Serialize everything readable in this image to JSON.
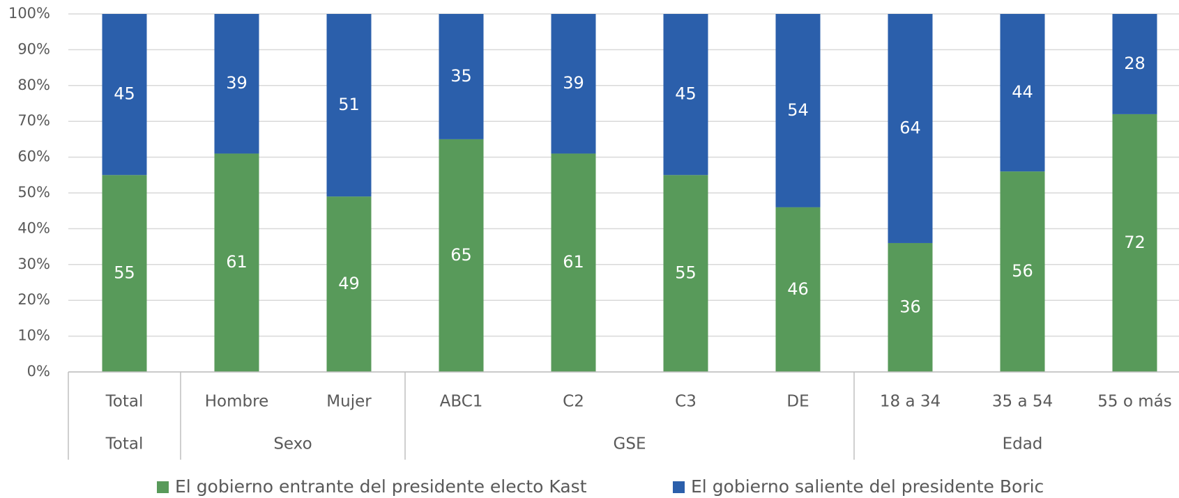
{
  "chart_data": {
    "type": "stacked_bar",
    "groups": [
      {
        "name": "Total",
        "categories": [
          "Total"
        ]
      },
      {
        "name": "Sexo",
        "categories": [
          "Hombre",
          "Mujer"
        ]
      },
      {
        "name": "GSE",
        "categories": [
          "ABC1",
          "C2",
          "C3",
          "DE"
        ]
      },
      {
        "name": "Edad",
        "categories": [
          "18 a 34",
          "35 a 54",
          "55 o más"
        ]
      }
    ],
    "series": [
      {
        "name": "El gobierno entrante del presidente electo Kast",
        "color": "#589a5a",
        "values": [
          55,
          61,
          49,
          65,
          61,
          55,
          46,
          36,
          56,
          72
        ]
      },
      {
        "name": "El gobierno saliente del presidente Boric",
        "color": "#2b5fab",
        "values": [
          45,
          39,
          51,
          35,
          39,
          45,
          54,
          64,
          44,
          28
        ]
      }
    ],
    "ylim": [
      0,
      100
    ],
    "yticks": [
      {
        "value": 0,
        "label": "0%"
      },
      {
        "value": 10,
        "label": "10%"
      },
      {
        "value": 20,
        "label": "20%"
      },
      {
        "value": 30,
        "label": "30%"
      },
      {
        "value": 40,
        "label": "40%"
      },
      {
        "value": 50,
        "label": "50%"
      },
      {
        "value": 60,
        "label": "60%"
      },
      {
        "value": 70,
        "label": "70%"
      },
      {
        "value": 80,
        "label": "80%"
      },
      {
        "value": 90,
        "label": "90%"
      },
      {
        "value": 100,
        "label": "100%"
      }
    ],
    "grid": true,
    "legend": "bottom"
  }
}
